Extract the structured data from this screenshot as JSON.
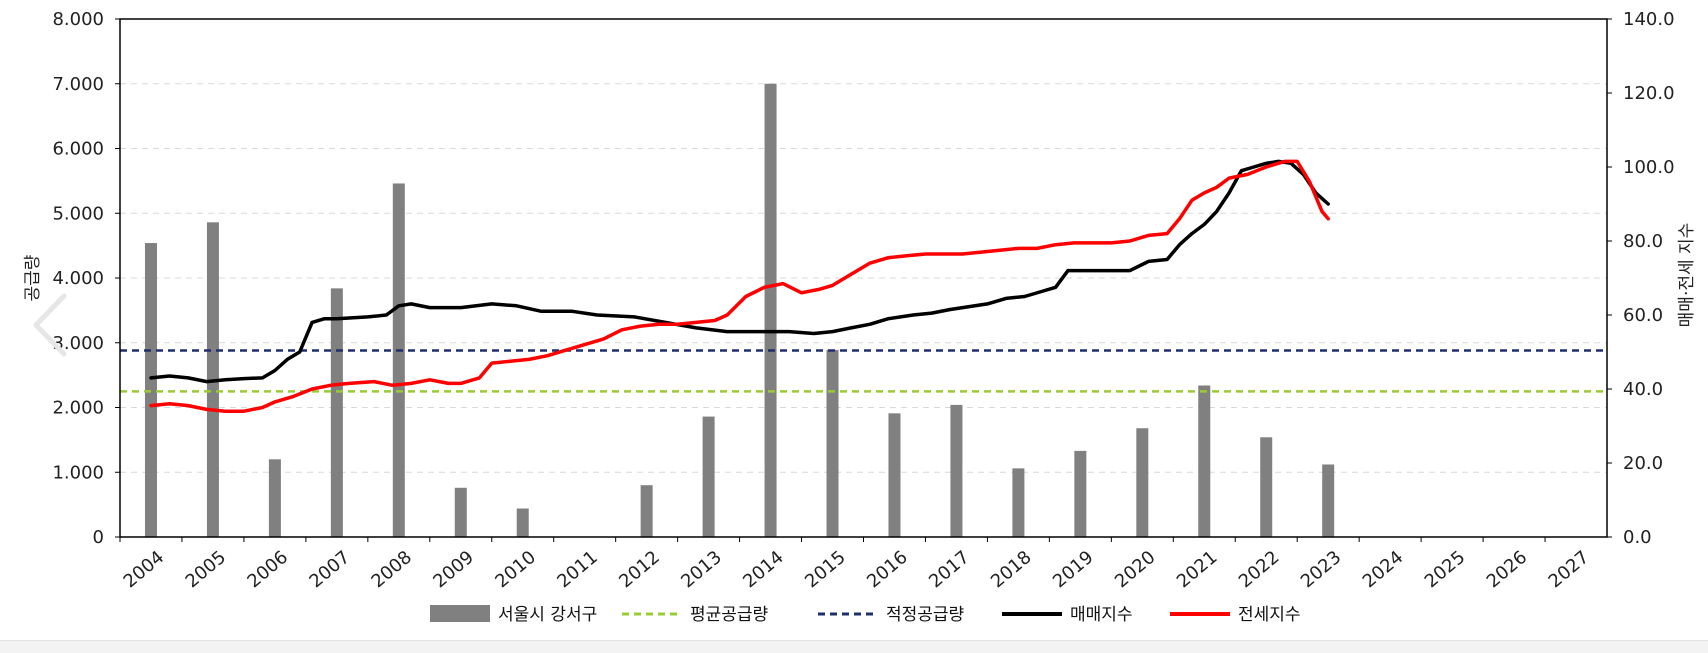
{
  "chart_data": {
    "type": "bar+line",
    "categories": [
      "2004",
      "2005",
      "2006",
      "2007",
      "2008",
      "2009",
      "2010",
      "2011",
      "2012",
      "2013",
      "2014",
      "2015",
      "2016",
      "2017",
      "2018",
      "2019",
      "2020",
      "2021",
      "2022",
      "2023",
      "2024",
      "2025",
      "2026",
      "2027"
    ],
    "y_left": {
      "label": "공급량",
      "min": 0,
      "max": 8000,
      "step": 1000,
      "ticks": [
        "0",
        "1.000",
        "2.000",
        "3.000",
        "4.000",
        "5.000",
        "6.000",
        "7.000",
        "8.000"
      ]
    },
    "y_right": {
      "label": "매매·전세 지수",
      "min": 0,
      "max": 140,
      "step": 20,
      "ticks": [
        "0.0",
        "20.0",
        "40.0",
        "60.0",
        "80.0",
        "100.0",
        "120.0",
        "140.0"
      ]
    },
    "grid": "horizontal-dashed",
    "legend_position": "bottom",
    "bars": {
      "name": "서울시 강서구",
      "color": "#808080",
      "axis": "left",
      "values": [
        4540,
        4860,
        1200,
        3840,
        5460,
        760,
        440,
        0,
        800,
        1860,
        7000,
        2890,
        1910,
        2040,
        1060,
        1330,
        1680,
        2340,
        1540,
        1120,
        null,
        null,
        null,
        null
      ]
    },
    "hlines": [
      {
        "name": "평균공급량",
        "value": 2250,
        "color": "#99cc33",
        "axis": "left",
        "style": "dashed"
      },
      {
        "name": "적정공급량",
        "value": 2880,
        "color": "#1f2f6e",
        "axis": "left",
        "style": "dashed"
      }
    ],
    "lines": [
      {
        "name": "매매지수",
        "color": "#000000",
        "axis": "right",
        "points": [
          [
            2004.0,
            43.0
          ],
          [
            2004.3,
            43.5
          ],
          [
            2004.6,
            43.0
          ],
          [
            2004.9,
            42.0
          ],
          [
            2005.2,
            42.5
          ],
          [
            2005.5,
            42.8
          ],
          [
            2005.8,
            43.0
          ],
          [
            2006.0,
            45.0
          ],
          [
            2006.2,
            48.0
          ],
          [
            2006.4,
            50.0
          ],
          [
            2006.6,
            58.0
          ],
          [
            2006.8,
            59.0
          ],
          [
            2007.0,
            59.0
          ],
          [
            2007.5,
            59.5
          ],
          [
            2007.8,
            60.0
          ],
          [
            2008.0,
            62.5
          ],
          [
            2008.2,
            63.0
          ],
          [
            2008.5,
            62.0
          ],
          [
            2008.8,
            62.0
          ],
          [
            2009.0,
            62.0
          ],
          [
            2009.5,
            63.0
          ],
          [
            2009.9,
            62.5
          ],
          [
            2010.3,
            61.0
          ],
          [
            2010.8,
            61.0
          ],
          [
            2011.2,
            60.0
          ],
          [
            2011.8,
            59.5
          ],
          [
            2012.3,
            58.0
          ],
          [
            2012.8,
            56.5
          ],
          [
            2013.3,
            55.5
          ],
          [
            2013.8,
            55.5
          ],
          [
            2014.3,
            55.5
          ],
          [
            2014.7,
            55.0
          ],
          [
            2015.0,
            55.5
          ],
          [
            2015.3,
            56.5
          ],
          [
            2015.6,
            57.5
          ],
          [
            2015.9,
            59.0
          ],
          [
            2016.3,
            60.0
          ],
          [
            2016.6,
            60.5
          ],
          [
            2016.9,
            61.5
          ],
          [
            2017.1,
            62.0
          ],
          [
            2017.5,
            63.0
          ],
          [
            2017.8,
            64.5
          ],
          [
            2018.1,
            65.0
          ],
          [
            2018.4,
            66.5
          ],
          [
            2018.6,
            67.5
          ],
          [
            2018.8,
            72.0
          ],
          [
            2019.0,
            72.0
          ],
          [
            2019.5,
            72.0
          ],
          [
            2019.8,
            72.0
          ],
          [
            2020.1,
            74.5
          ],
          [
            2020.4,
            75.0
          ],
          [
            2020.6,
            79.0
          ],
          [
            2020.8,
            82.0
          ],
          [
            2021.0,
            84.5
          ],
          [
            2021.2,
            88.0
          ],
          [
            2021.4,
            93.0
          ],
          [
            2021.6,
            99.0
          ],
          [
            2021.8,
            100.0
          ],
          [
            2022.0,
            101.0
          ],
          [
            2022.2,
            101.5
          ],
          [
            2022.4,
            101.0
          ],
          [
            2022.6,
            98.0
          ],
          [
            2022.8,
            93.0
          ],
          [
            2023.0,
            90.0
          ]
        ]
      },
      {
        "name": "전세지수",
        "color": "#ff0000",
        "axis": "right",
        "points": [
          [
            2004.0,
            35.5
          ],
          [
            2004.3,
            36.0
          ],
          [
            2004.6,
            35.5
          ],
          [
            2004.9,
            34.5
          ],
          [
            2005.2,
            34.0
          ],
          [
            2005.5,
            34.0
          ],
          [
            2005.8,
            35.0
          ],
          [
            2006.0,
            36.5
          ],
          [
            2006.3,
            38.0
          ],
          [
            2006.6,
            40.0
          ],
          [
            2006.9,
            41.0
          ],
          [
            2007.2,
            41.5
          ],
          [
            2007.6,
            42.0
          ],
          [
            2007.9,
            41.0
          ],
          [
            2008.2,
            41.5
          ],
          [
            2008.5,
            42.5
          ],
          [
            2008.8,
            41.5
          ],
          [
            2009.0,
            41.5
          ],
          [
            2009.3,
            43.0
          ],
          [
            2009.5,
            47.0
          ],
          [
            2009.8,
            47.5
          ],
          [
            2010.1,
            48.0
          ],
          [
            2010.4,
            49.0
          ],
          [
            2010.7,
            50.5
          ],
          [
            2011.0,
            52.0
          ],
          [
            2011.3,
            53.5
          ],
          [
            2011.6,
            56.0
          ],
          [
            2011.9,
            57.0
          ],
          [
            2012.2,
            57.5
          ],
          [
            2012.5,
            57.5
          ],
          [
            2012.8,
            58.0
          ],
          [
            2013.1,
            58.5
          ],
          [
            2013.3,
            60.0
          ],
          [
            2013.6,
            65.0
          ],
          [
            2013.9,
            67.5
          ],
          [
            2014.2,
            68.5
          ],
          [
            2014.5,
            66.0
          ],
          [
            2014.8,
            67.0
          ],
          [
            2015.0,
            68.0
          ],
          [
            2015.3,
            71.0
          ],
          [
            2015.6,
            74.0
          ],
          [
            2015.9,
            75.5
          ],
          [
            2016.2,
            76.0
          ],
          [
            2016.5,
            76.5
          ],
          [
            2016.8,
            76.5
          ],
          [
            2017.1,
            76.5
          ],
          [
            2017.4,
            77.0
          ],
          [
            2017.7,
            77.5
          ],
          [
            2018.0,
            78.0
          ],
          [
            2018.3,
            78.0
          ],
          [
            2018.6,
            79.0
          ],
          [
            2018.9,
            79.5
          ],
          [
            2019.2,
            79.5
          ],
          [
            2019.5,
            79.5
          ],
          [
            2019.8,
            80.0
          ],
          [
            2020.1,
            81.5
          ],
          [
            2020.4,
            82.0
          ],
          [
            2020.6,
            86.0
          ],
          [
            2020.8,
            91.0
          ],
          [
            2021.0,
            93.0
          ],
          [
            2021.2,
            94.5
          ],
          [
            2021.4,
            97.0
          ],
          [
            2021.7,
            98.0
          ],
          [
            2022.0,
            100.0
          ],
          [
            2022.3,
            101.5
          ],
          [
            2022.5,
            101.5
          ],
          [
            2022.7,
            96.0
          ],
          [
            2022.9,
            88.0
          ],
          [
            2023.0,
            86.0
          ]
        ]
      }
    ]
  },
  "legend": {
    "items": [
      {
        "label": "서울시 강서구",
        "kind": "bar",
        "color": "#808080"
      },
      {
        "label": "평균공급량",
        "kind": "dashed",
        "color": "#99cc33"
      },
      {
        "label": "적정공급량",
        "kind": "dashed",
        "color": "#1f2f6e"
      },
      {
        "label": "매매지수",
        "kind": "solid",
        "color": "#000000"
      },
      {
        "label": "전세지수",
        "kind": "solid",
        "color": "#ff0000"
      }
    ]
  },
  "nav": {
    "prev_icon": "chevron-left-icon"
  }
}
